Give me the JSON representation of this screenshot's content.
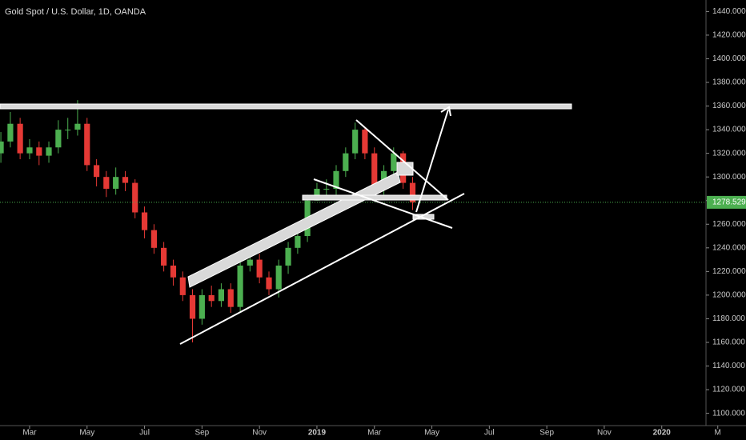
{
  "chart_data": {
    "type": "candlestick",
    "title": "Gold Spot / U.S. Dollar, 1D, OANDA",
    "up_color": "#4caf50",
    "down_color": "#e53935",
    "x": [
      -1,
      -0.67,
      -0.33,
      0,
      0.33,
      0.67,
      1,
      1.33,
      1.67,
      2,
      2.33,
      2.67,
      3,
      3.33,
      3.67,
      4,
      4.33,
      4.67,
      5,
      5.33,
      5.67,
      6,
      6.33,
      6.67,
      7,
      7.33,
      7.67,
      8,
      8.33,
      8.67,
      9,
      9.33,
      9.67,
      10,
      10.33,
      10.67,
      11,
      11.33,
      11.67,
      12,
      12.33,
      12.67,
      13,
      13.33
    ],
    "open": [
      1320,
      1330,
      1345,
      1320,
      1325,
      1318,
      1325,
      1340,
      1340,
      1345,
      1310,
      1300,
      1290,
      1300,
      1295,
      1270,
      1255,
      1240,
      1225,
      1215,
      1200,
      1180,
      1200,
      1195,
      1205,
      1190,
      1225,
      1230,
      1215,
      1205,
      1225,
      1240,
      1250,
      1280,
      1290,
      1290,
      1305,
      1320,
      1340,
      1320,
      1290,
      1305,
      1320,
      1295
    ],
    "high": [
      1338,
      1355,
      1350,
      1332,
      1330,
      1330,
      1348,
      1350,
      1365,
      1350,
      1315,
      1305,
      1308,
      1305,
      1298,
      1275,
      1260,
      1245,
      1230,
      1220,
      1205,
      1205,
      1208,
      1210,
      1210,
      1230,
      1240,
      1235,
      1220,
      1230,
      1245,
      1258,
      1285,
      1295,
      1298,
      1310,
      1325,
      1346,
      1342,
      1325,
      1310,
      1325,
      1322,
      1300
    ],
    "low": [
      1312,
      1325,
      1315,
      1315,
      1310,
      1312,
      1320,
      1332,
      1335,
      1305,
      1292,
      1283,
      1285,
      1288,
      1265,
      1248,
      1235,
      1220,
      1208,
      1195,
      1160,
      1175,
      1190,
      1190,
      1185,
      1185,
      1220,
      1210,
      1200,
      1198,
      1218,
      1235,
      1245,
      1280,
      1282,
      1285,
      1300,
      1315,
      1315,
      1285,
      1285,
      1300,
      1290,
      1272
    ],
    "close": [
      1330,
      1345,
      1320,
      1325,
      1318,
      1325,
      1340,
      1340,
      1345,
      1310,
      1300,
      1290,
      1300,
      1295,
      1270,
      1255,
      1240,
      1225,
      1215,
      1200,
      1180,
      1200,
      1195,
      1205,
      1190,
      1225,
      1230,
      1215,
      1205,
      1225,
      1240,
      1250,
      1280,
      1290,
      1290,
      1305,
      1320,
      1340,
      1320,
      1290,
      1305,
      1320,
      1295,
      1278.529
    ],
    "xlim": [
      -1.03,
      23.54
    ],
    "xticks": [
      {
        "value": 0,
        "label": "Mar"
      },
      {
        "value": 2,
        "label": "May"
      },
      {
        "value": 4,
        "label": "Jul"
      },
      {
        "value": 6,
        "label": "Sep"
      },
      {
        "value": 8,
        "label": "Nov"
      },
      {
        "value": 10,
        "label": "2019"
      },
      {
        "value": 12,
        "label": "Mar"
      },
      {
        "value": 14,
        "label": "May"
      },
      {
        "value": 16,
        "label": "Jul"
      },
      {
        "value": 18,
        "label": "Sep"
      },
      {
        "value": 20,
        "label": "Nov"
      },
      {
        "value": 22,
        "label": "2020"
      },
      {
        "value": 23.95,
        "label": "M"
      }
    ],
    "ylim": [
      1095,
      1445
    ],
    "yticks": [
      {
        "value": 1440,
        "label": "1440.000"
      },
      {
        "value": 1420,
        "label": "1420.000"
      },
      {
        "value": 1400,
        "label": "1400.000"
      },
      {
        "value": 1380,
        "label": "1380.000"
      },
      {
        "value": 1360,
        "label": "1360.000"
      },
      {
        "value": 1340,
        "label": "1340.000"
      },
      {
        "value": 1320,
        "label": "1320.000"
      },
      {
        "value": 1300,
        "label": "1300.000"
      },
      {
        "value": 1280,
        "label": "1280.000"
      },
      {
        "value": 1260,
        "label": "1260.000"
      },
      {
        "value": 1240,
        "label": "1240.000"
      },
      {
        "value": 1220,
        "label": "1220.000"
      },
      {
        "value": 1200,
        "label": "1200.000"
      },
      {
        "value": 1180,
        "label": "1180.000"
      },
      {
        "value": 1160,
        "label": "1160.000"
      },
      {
        "value": 1140,
        "label": "1140.000"
      },
      {
        "value": 1120,
        "label": "1120.000"
      },
      {
        "value": 1100,
        "label": "1100.000"
      }
    ]
  }
}
